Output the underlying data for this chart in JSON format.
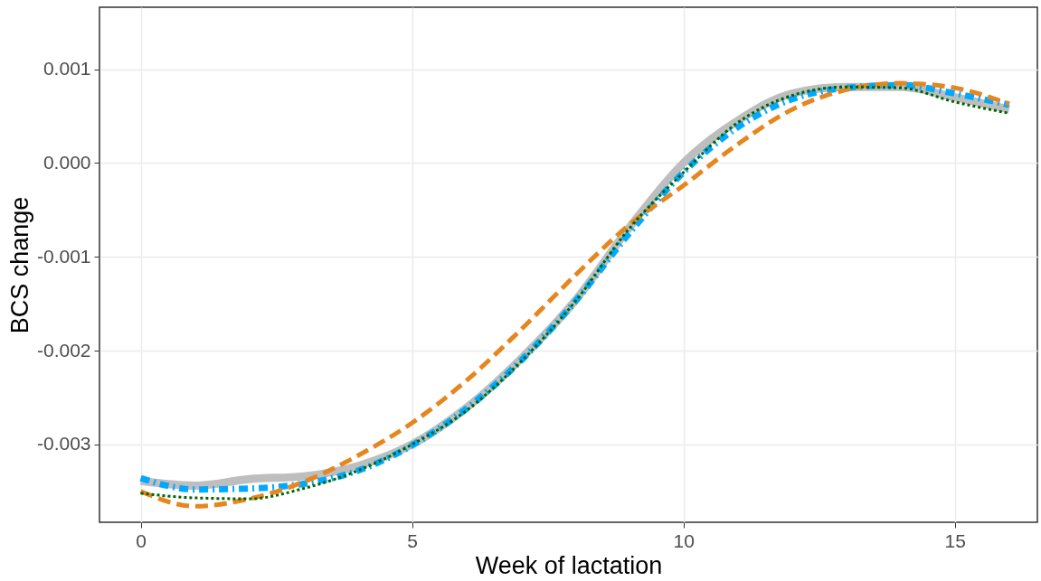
{
  "chart_data": {
    "type": "line",
    "xlabel": "Week of lactation",
    "ylabel": "BCS change",
    "x": [
      0,
      1,
      2,
      3,
      4,
      5,
      6,
      7,
      8,
      9,
      10,
      11,
      12,
      13,
      14,
      15,
      16
    ],
    "xlim": [
      -0.76,
      16.52
    ],
    "xticks": [
      0,
      5,
      10,
      15
    ],
    "ylim": [
      -0.00383,
      0.00166
    ],
    "yticks": [
      {
        "value": 0.001,
        "label": "0.001"
      },
      {
        "value": 0,
        "label": "0.000"
      },
      {
        "value": -0.001,
        "label": "-0.001"
      },
      {
        "value": -0.002,
        "label": "-0.002"
      },
      {
        "value": -0.003,
        "label": "-0.003"
      }
    ],
    "grid": true,
    "series": [
      {
        "color": "#bebebe",
        "line_style": "solid",
        "values": [
          -0.00339,
          -0.00344,
          -0.00337,
          -0.00334,
          -0.00323,
          -0.003,
          -0.00261,
          -0.00209,
          -0.00147,
          -0.00069,
          0,
          0.00045,
          0.00074,
          0.00081,
          0.00081,
          0.0007,
          0.00057
        ]
      },
      {
        "color": "#00a9ff",
        "line_style": "dashdot",
        "values": [
          -0.00336,
          -0.00348,
          -0.00347,
          -0.00342,
          -0.00328,
          -0.00301,
          -0.00262,
          -0.00211,
          -0.00148,
          -0.00075,
          -0.0001,
          0.00038,
          0.00068,
          0.0008,
          0.00083,
          0.00074,
          0.00062
        ]
      },
      {
        "color": "#e6861f",
        "line_style": "dashed",
        "values": [
          -0.0035,
          -0.00366,
          -0.00358,
          -0.0034,
          -0.00312,
          -0.00277,
          -0.00232,
          -0.00178,
          -0.0012,
          -0.00066,
          -0.00024,
          0.0002,
          0.00057,
          0.00078,
          0.00085,
          0.0008,
          0.00063
        ]
      },
      {
        "color": "#006400",
        "line_style": "dotted",
        "values": [
          -0.00352,
          -0.00357,
          -0.00358,
          -0.00347,
          -0.00328,
          -0.003,
          -0.00264,
          -0.00212,
          -0.00148,
          -0.0007,
          -0.0001,
          0.00043,
          0.00072,
          0.00081,
          0.0008,
          0.00065,
          0.00053
        ]
      }
    ]
  }
}
